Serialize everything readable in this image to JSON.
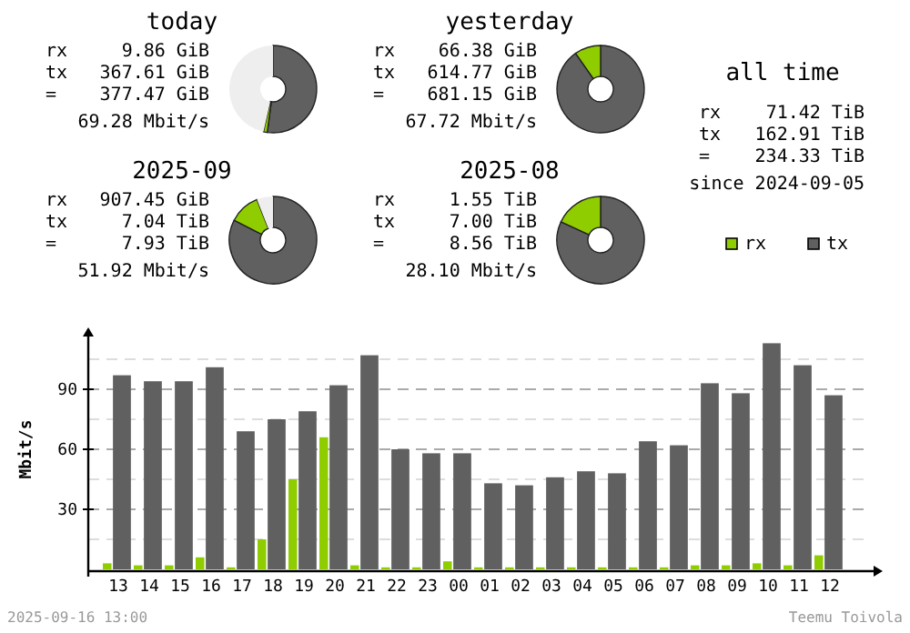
{
  "chart_data": [
    {
      "type": "donut",
      "title": "today",
      "categories": [
        null,
        null,
        null
      ],
      "values": [
        52.1,
        1.4,
        46.5
      ],
      "colors": [
        "#606060",
        "#8fcc00",
        "#eeeeee"
      ],
      "annotations": [
        "rx",
        "9.86 GiB",
        "tx",
        "367.61 GiB",
        "=",
        "377.47 GiB",
        "69.28 Mbit/s"
      ]
    },
    {
      "type": "donut",
      "title": "yesterday",
      "categories": [
        null,
        null
      ],
      "values": [
        90.3,
        9.7
      ],
      "colors": [
        "#606060",
        "#8fcc00"
      ],
      "annotations": [
        "rx",
        "66.38 GiB",
        "tx",
        "614.77 GiB",
        "=",
        "681.15 GiB",
        "67.72 Mbit/s"
      ]
    },
    {
      "type": "donut",
      "title": "2025-09",
      "categories": [
        null,
        null,
        null
      ],
      "values": [
        82.5,
        11.5,
        6
      ],
      "colors": [
        "#606060",
        "#8fcc00",
        "#eeeeee"
      ],
      "annotations": [
        "rx",
        "907.45 GiB",
        "tx",
        "7.04 TiB",
        "=",
        "7.93 TiB",
        "51.92 Mbit/s"
      ]
    },
    {
      "type": "donut",
      "title": "2025-08",
      "categories": [
        null,
        null
      ],
      "values": [
        81.9,
        18.1
      ],
      "colors": [
        "#606060",
        "#8fcc00"
      ],
      "annotations": [
        "rx",
        "1.55 TiB",
        "tx",
        "7.00 TiB",
        "=",
        "8.56 TiB",
        "28.10 Mbit/s"
      ]
    },
    {
      "type": "other",
      "title": "all time",
      "annotations": [
        "rx",
        "71.42 TiB",
        "tx",
        "162.91 TiB",
        "=",
        "234.33 TiB",
        "since 2024-09-05"
      ]
    },
    {
      "type": "bar",
      "ylabel": "Mbit/s",
      "categories": [
        "13",
        "14",
        "15",
        "16",
        "17",
        "18",
        "19",
        "20",
        "21",
        "22",
        "23",
        "00",
        "01",
        "02",
        "03",
        "04",
        "05",
        "06",
        "07",
        "08",
        "09",
        "10",
        "11",
        "12"
      ],
      "series": [
        {
          "name": "rx",
          "color": "#8fcc00",
          "values": [
            3,
            2,
            2,
            6,
            1,
            15,
            45,
            66,
            2,
            1,
            1,
            4,
            1,
            1,
            1,
            1,
            1,
            1,
            1,
            2,
            2,
            3,
            2,
            7
          ]
        },
        {
          "name": "tx",
          "color": "#606060",
          "values": [
            97,
            94,
            94,
            101,
            69,
            75,
            79,
            92,
            107,
            60,
            58,
            58,
            43,
            42,
            46,
            49,
            48,
            64,
            62,
            93,
            88,
            113,
            102,
            87
          ]
        }
      ],
      "ylim": [
        0,
        120
      ],
      "yticks": [
        {
          "value": 15,
          "label": null
        },
        30,
        {
          "value": 45,
          "label": null
        },
        60,
        {
          "value": 75,
          "label": null
        },
        90,
        {
          "value": 105,
          "label": null
        }
      ],
      "grid": "y",
      "legend": "top right",
      "annotations": [
        "2025-09-16 13:00",
        "Teemu Toivola"
      ]
    }
  ]
}
